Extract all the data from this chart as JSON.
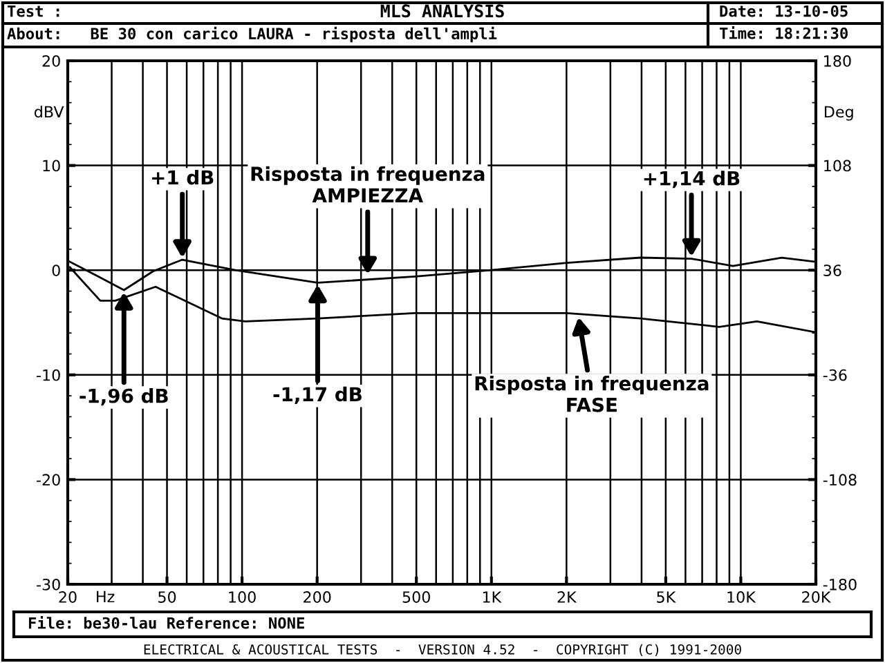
{
  "chart_data": {
    "type": "line",
    "title": "MLS ANALYSIS",
    "x": [
      20,
      26,
      33.6,
      44,
      57.6,
      94,
      201,
      494,
      996,
      2000,
      3960,
      6340,
      9300,
      14600,
      20000
    ],
    "series": [
      {
        "color": "#000000",
        "values": [
          0.9,
          -0.5,
          -1.9,
          -0.1,
          1.0,
          0.0,
          -1.2,
          -0.6,
          0.0,
          0.7,
          1.2,
          1.1,
          0.4,
          1.2,
          0.8
        ]
      },
      {
        "color": "#000000",
        "axis": "y2",
        "x": [
          20.4,
          27,
          31,
          45,
          83,
          103,
          201,
          493,
          2000,
          3960,
          8190,
          11600,
          20000
        ],
        "values": [
          38,
          15,
          15,
          24.6,
          2.8,
          0.8,
          2.8,
          6.5,
          6.5,
          2.8,
          -3,
          0.8,
          -6.7
        ]
      }
    ],
    "log": "x",
    "grid": true,
    "xlim": [
      20,
      20000
    ],
    "xticks": [
      20,
      50,
      100,
      200,
      500,
      {
        "value": 1000,
        "label": "1K"
      },
      {
        "value": 2000,
        "label": "2K"
      },
      {
        "value": 5000,
        "label": "5K"
      },
      {
        "value": 10000,
        "label": "10K"
      },
      {
        "value": 20000,
        "label": "20K"
      }
    ],
    "xlabel": "Hz",
    "ylim": [
      -30,
      20
    ],
    "yticks": [
      -30,
      -20,
      -10,
      0,
      10,
      20
    ],
    "ylabel": "dBV",
    "y2lim": [
      -180,
      180
    ],
    "y2ticks": [
      -180,
      -108,
      -36,
      36,
      108,
      180
    ],
    "y2label": "Deg",
    "annotations": [
      {
        "text": "+1 dB",
        "x": 57.6,
        "y": 1.0
      },
      {
        "text": "-1,96 dB",
        "x": 33.6,
        "y": -1.9
      },
      {
        "text": "-1,17 dB",
        "x": 201,
        "y": -1.2
      },
      {
        "text": "+1,14 dB",
        "x": 6340,
        "y": 1.1
      },
      {
        "text": "Risposta in frequenza\nAMPIEZZA",
        "x": 319,
        "y": -0.6
      },
      {
        "text": "Risposta in frequenza\nFASE",
        "x": 2230,
        "y": -4.3
      },
      "Test :",
      "About:   BE 30 con carico LAURA - risposta dell'ampli",
      "Date: 13-10-05",
      "Time: 18:21:30",
      "File: be30-lau Reference: NONE",
      "ELECTRICAL & ACOUSTICAL TESTS  -  VERSION 4.52  -  COPYRIGHT (C) 1991-2000"
    ]
  }
}
